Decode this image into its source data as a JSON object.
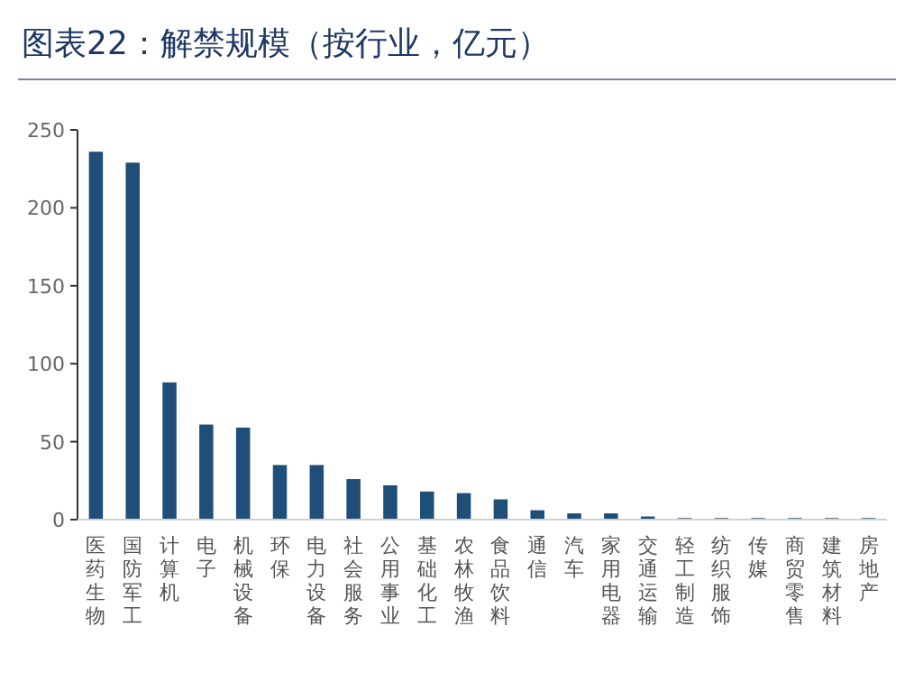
{
  "chart_data": {
    "type": "bar",
    "title": "图表22：解禁规模（按行业，亿元）",
    "categories": [
      "医药生物",
      "国防军工",
      "计算机",
      "电子",
      "机械设备",
      "环保",
      "电力设备",
      "社会服务",
      "公用事业",
      "基础化工",
      "农林牧渔",
      "食品饮料",
      "通信",
      "汽车",
      "家用电器",
      "交通运输",
      "轻工制造",
      "纺织服饰",
      "传媒",
      "商贸零售",
      "建筑材料",
      "房地产"
    ],
    "values": [
      236,
      229,
      88,
      61,
      59,
      35,
      35,
      26,
      22,
      18,
      17,
      13,
      6,
      4,
      4,
      2,
      1,
      1,
      1,
      1,
      1,
      1
    ],
    "color": "#1f4e79",
    "ylim": [
      0,
      250
    ],
    "yticks": [
      0,
      50,
      100,
      150,
      200,
      250
    ],
    "grid": false
  }
}
